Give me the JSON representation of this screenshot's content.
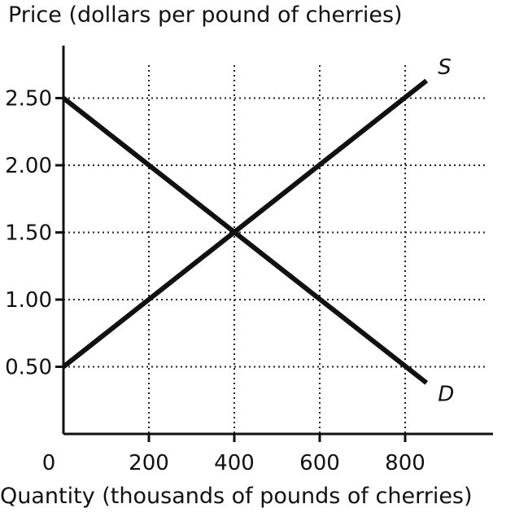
{
  "chart_data": {
    "type": "line",
    "ylabel": "Price (dollars per pound of cherries)",
    "xlabel": "Quantity (thousands of pounds of cherries)",
    "xlim": [
      0,
      1000
    ],
    "ylim": [
      0,
      2.83
    ],
    "x_ticks": [
      200,
      400,
      600,
      800
    ],
    "x_tick_labels": [
      "200",
      "400",
      "600",
      "800"
    ],
    "y_ticks": [
      0.5,
      1.0,
      1.5,
      2.0,
      2.5
    ],
    "y_tick_labels": [
      "0.50",
      "1.00",
      "1.50",
      "2.00",
      "2.50"
    ],
    "origin_label": "0",
    "grid": true,
    "series": [
      {
        "name": "S",
        "points": [
          [
            0,
            0.5
          ],
          [
            850,
            2.63
          ]
        ]
      },
      {
        "name": "D",
        "points": [
          [
            0,
            2.5
          ],
          [
            850,
            0.38
          ]
        ]
      }
    ]
  }
}
